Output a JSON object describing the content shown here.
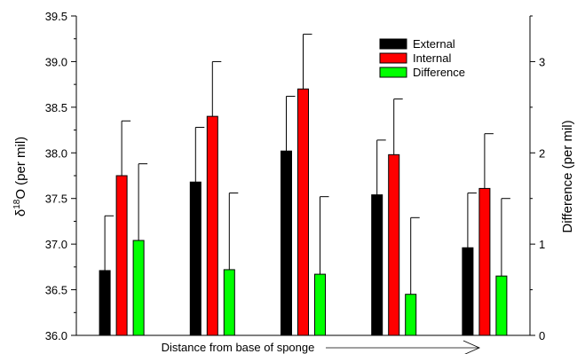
{
  "chart_data": {
    "type": "bar",
    "title": "",
    "categories": [
      "",
      "",
      "",
      "",
      ""
    ],
    "y_left": {
      "label_prefix": "δ",
      "label_sup": "18",
      "label_rest": "O (per mil)",
      "range": [
        36.0,
        39.5
      ],
      "ticks": [
        "36.0",
        "36.5",
        "37.0",
        "37.5",
        "38.0",
        "38.5",
        "39.0",
        "39.5"
      ]
    },
    "y_right": {
      "label": "Difference (per mil)",
      "range": [
        0,
        3.5
      ],
      "ticks": [
        "0",
        "1",
        "2",
        "3"
      ]
    },
    "xlabel": "Distance from base of sponge",
    "legend_position": "top-right",
    "series": [
      {
        "name": "External",
        "axis": "left",
        "color": "#000000",
        "values": [
          36.71,
          37.68,
          38.02,
          37.54,
          36.96
        ],
        "error_plus": [
          0.6,
          0.6,
          0.6,
          0.6,
          0.6
        ]
      },
      {
        "name": "Internal",
        "axis": "left",
        "color": "#ff0000",
        "values": [
          37.75,
          38.4,
          38.7,
          37.98,
          37.61
        ],
        "error_plus": [
          0.6,
          0.6,
          0.6,
          0.61,
          0.6
        ]
      },
      {
        "name": "Difference",
        "axis": "right",
        "color": "#00ff00",
        "values": [
          1.04,
          0.72,
          0.67,
          0.45,
          0.65
        ],
        "error_plus": [
          0.84,
          0.84,
          0.85,
          0.84,
          0.85
        ]
      }
    ]
  }
}
